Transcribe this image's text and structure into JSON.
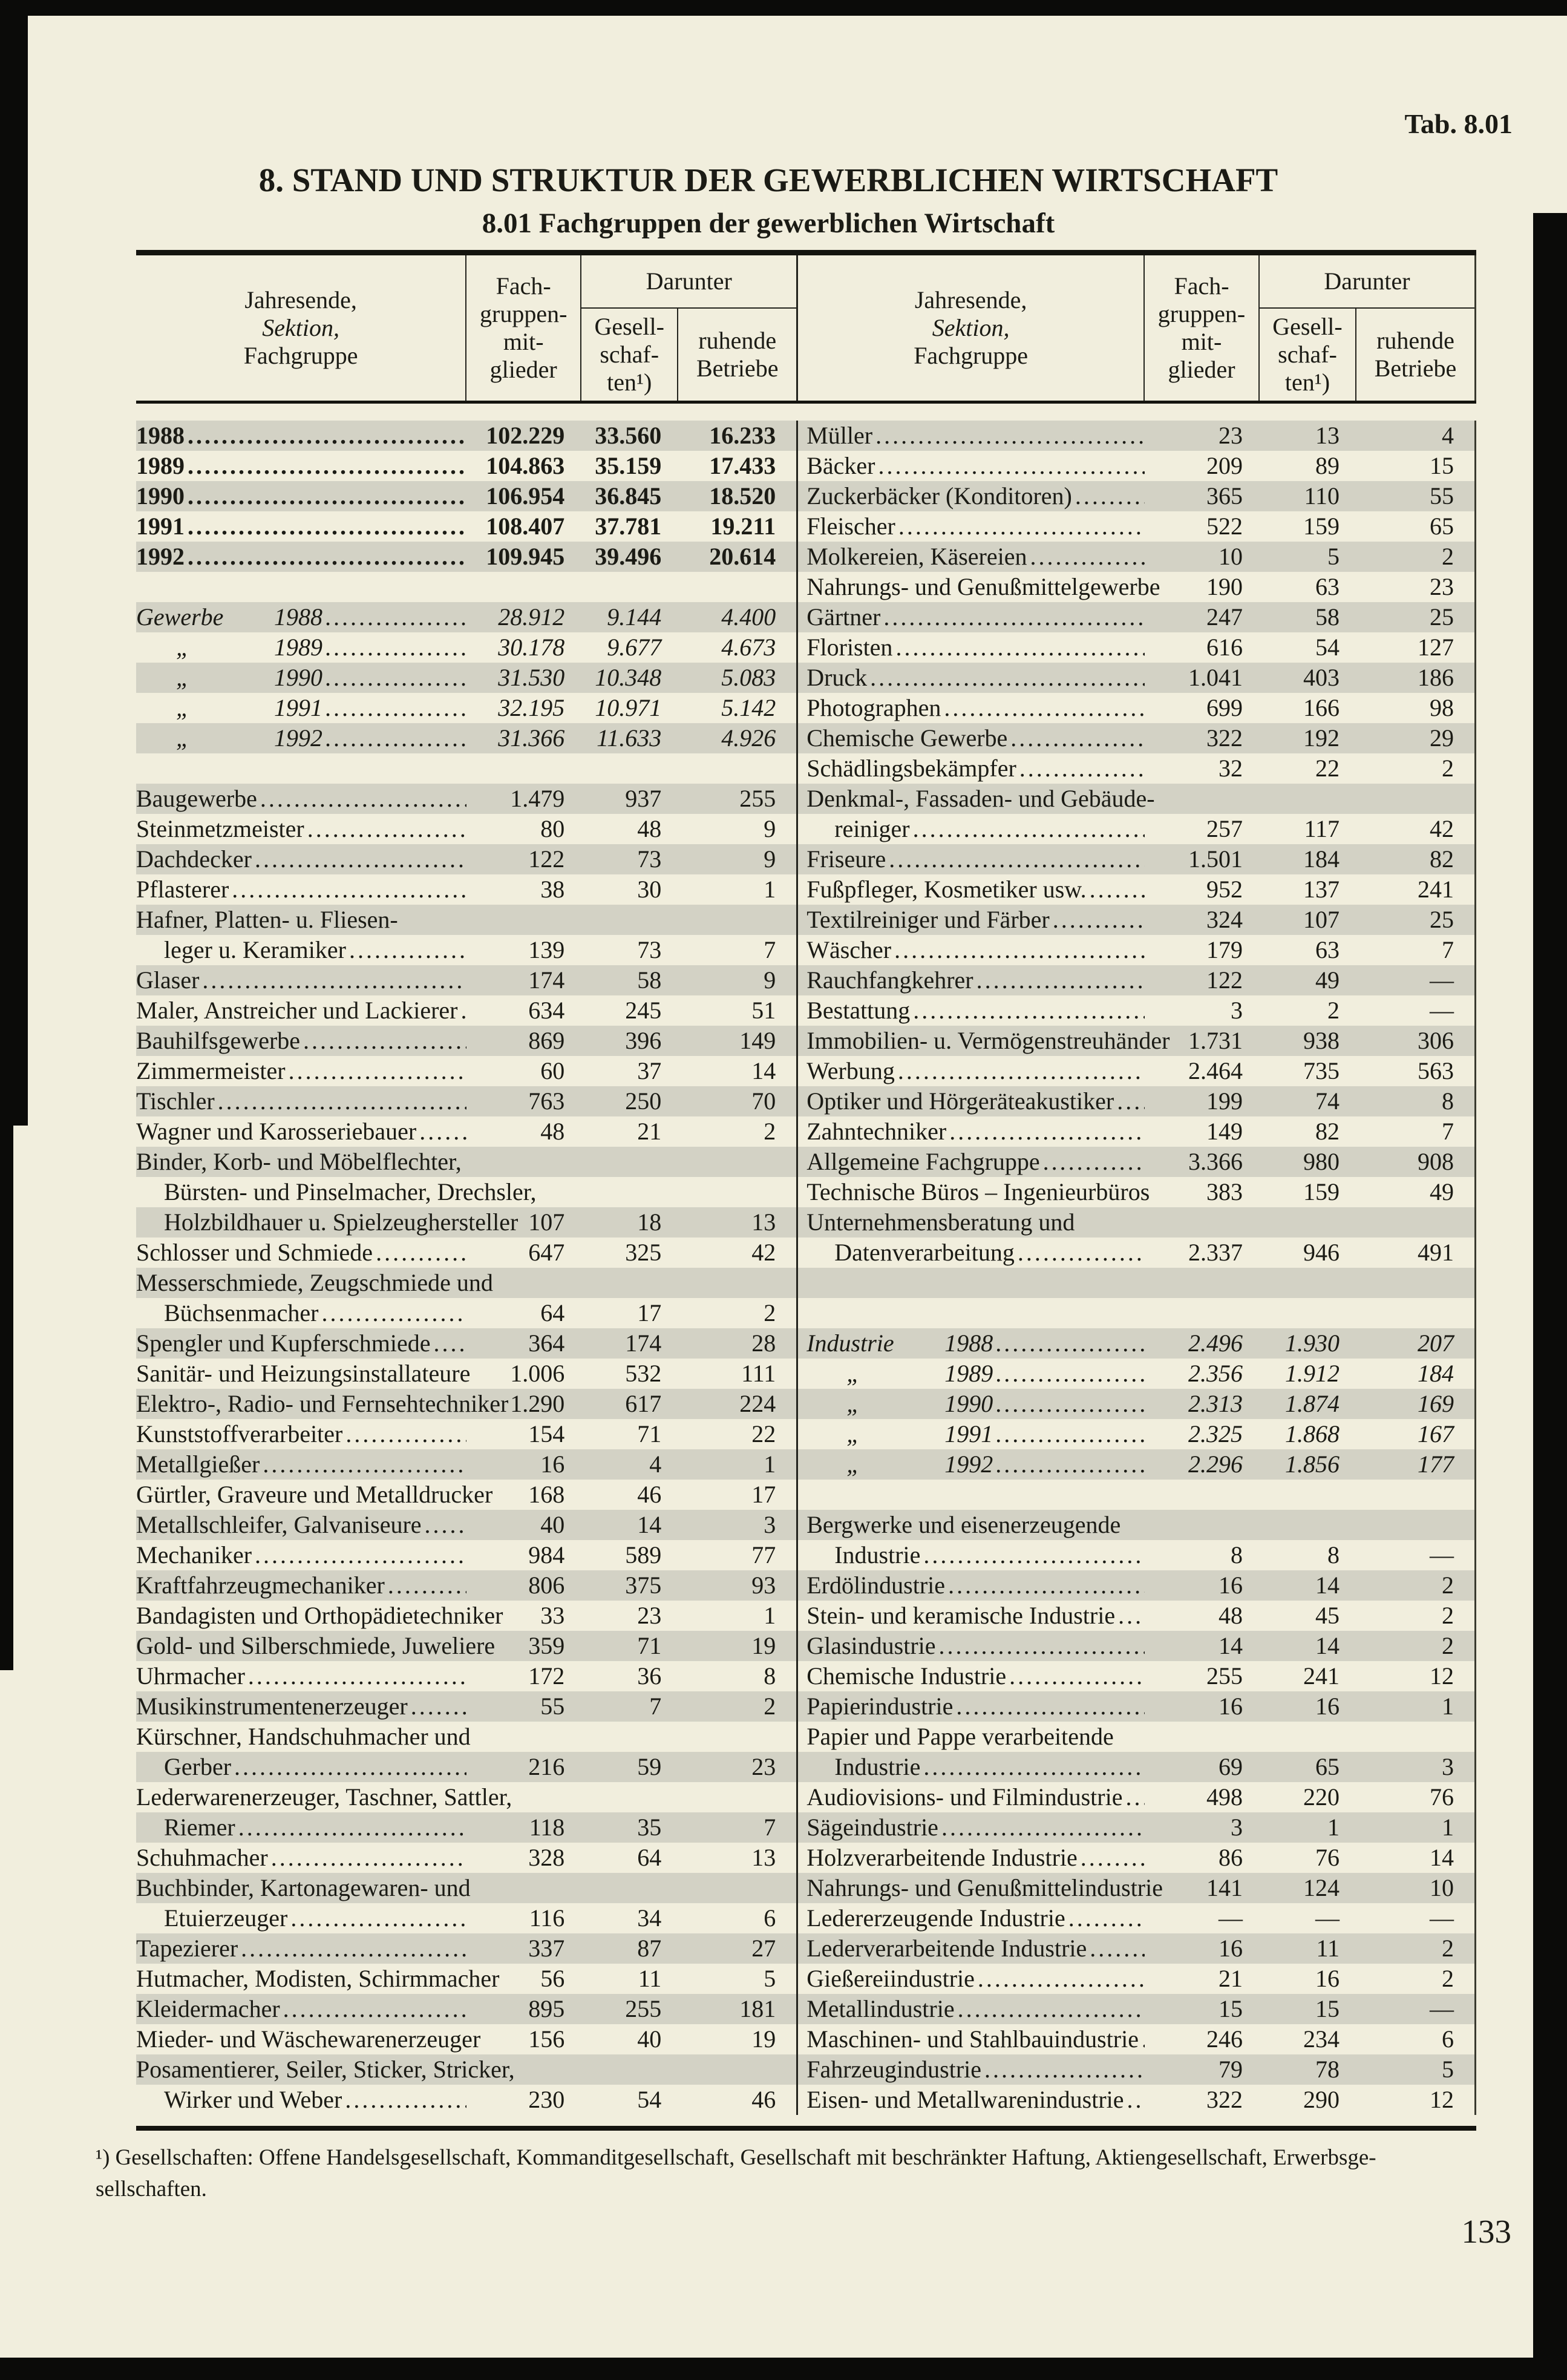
{
  "page": {
    "tab_label": "Tab. 8.01",
    "title": "8. STAND UND STRUKTUR DER GEWERBLICHEN WIRTSCHAFT",
    "subtitle": "8.01 Fachgruppen der gewerblichen Wirtschaft",
    "footnote_line1": "¹) Gesellschaften: Offene Handelsgesellschaft, Kommanditgesellschaft, Gesellschaft mit beschränkter Haftung, Aktiengesellschaft, Erwerbsge-",
    "footnote_line2": "sellschaften.",
    "page_number": "133"
  },
  "colors": {
    "paper": "#f1eedd",
    "band": "#d3d2c5",
    "ink": "#1b1b15"
  },
  "header": {
    "label_line1": "Jahresende,",
    "label_line2": "Sektion,",
    "label_line3": "Fachgruppe",
    "members": "Fach-\ngruppen-\nmit-\nglieder",
    "darunter": "Darunter",
    "companies": "Gesell-\nschaf-\nten¹)",
    "dormant": "ruhende\nBetriebe"
  },
  "table": {
    "rows": [
      {
        "l": {
          "t": "1988",
          "s": "b",
          "v": [
            "102.229",
            "33.560",
            "16.233"
          ]
        },
        "r": {
          "t": "Müller",
          "v": [
            "23",
            "13",
            "4"
          ]
        }
      },
      {
        "l": {
          "t": "1989",
          "s": "b",
          "v": [
            "104.863",
            "35.159",
            "17.433"
          ]
        },
        "r": {
          "t": "Bäcker",
          "v": [
            "209",
            "89",
            "15"
          ]
        }
      },
      {
        "l": {
          "t": "1990",
          "s": "b",
          "v": [
            "106.954",
            "36.845",
            "18.520"
          ]
        },
        "r": {
          "t": "Zuckerbäcker (Konditoren)",
          "v": [
            "365",
            "110",
            "55"
          ]
        }
      },
      {
        "l": {
          "t": "1991",
          "s": "b",
          "v": [
            "108.407",
            "37.781",
            "19.211"
          ]
        },
        "r": {
          "t": "Fleischer",
          "v": [
            "522",
            "159",
            "65"
          ]
        }
      },
      {
        "l": {
          "t": "1992",
          "s": "b",
          "v": [
            "109.945",
            "39.496",
            "20.614"
          ]
        },
        "r": {
          "t": "Molkereien, Käsereien",
          "v": [
            "10",
            "5",
            "2"
          ]
        }
      },
      {
        "l": null,
        "r": {
          "t": "Nahrungs- und Genußmittelgewerbe",
          "v": [
            "190",
            "63",
            "23"
          ]
        }
      },
      {
        "l": {
          "t": "Gewerbe\t1988",
          "s": "i",
          "v": [
            "28.912",
            "9.144",
            "4.400"
          ]
        },
        "r": {
          "t": "Gärtner",
          "v": [
            "247",
            "58",
            "25"
          ]
        }
      },
      {
        "l": {
          "t": "„\t1989",
          "s": "i",
          "v": [
            "30.178",
            "9.677",
            "4.673"
          ]
        },
        "r": {
          "t": "Floristen",
          "v": [
            "616",
            "54",
            "127"
          ]
        }
      },
      {
        "l": {
          "t": "„\t1990",
          "s": "i",
          "v": [
            "31.530",
            "10.348",
            "5.083"
          ]
        },
        "r": {
          "t": "Druck",
          "v": [
            "1.041",
            "403",
            "186"
          ]
        }
      },
      {
        "l": {
          "t": "„\t1991",
          "s": "i",
          "v": [
            "32.195",
            "10.971",
            "5.142"
          ]
        },
        "r": {
          "t": "Photographen",
          "v": [
            "699",
            "166",
            "98"
          ]
        }
      },
      {
        "l": {
          "t": "„\t1992",
          "s": "i",
          "v": [
            "31.366",
            "11.633",
            "4.926"
          ]
        },
        "r": {
          "t": "Chemische Gewerbe",
          "v": [
            "322",
            "192",
            "29"
          ]
        }
      },
      {
        "l": null,
        "r": {
          "t": "Schädlingsbekämpfer",
          "v": [
            "32",
            "22",
            "2"
          ]
        }
      },
      {
        "l": {
          "t": "Baugewerbe",
          "v": [
            "1.479",
            "937",
            "255"
          ]
        },
        "r": {
          "t": "Denkmal-, Fassaden- und Gebäude-"
        }
      },
      {
        "l": {
          "t": "Steinmetzmeister",
          "v": [
            "80",
            "48",
            "9"
          ]
        },
        "r": {
          "t": "reiniger",
          "ind": true,
          "v": [
            "257",
            "117",
            "42"
          ]
        }
      },
      {
        "l": {
          "t": "Dachdecker",
          "v": [
            "122",
            "73",
            "9"
          ]
        },
        "r": {
          "t": "Friseure",
          "v": [
            "1.501",
            "184",
            "82"
          ]
        }
      },
      {
        "l": {
          "t": "Pflasterer",
          "v": [
            "38",
            "30",
            "1"
          ]
        },
        "r": {
          "t": "Fußpfleger, Kosmetiker usw.",
          "v": [
            "952",
            "137",
            "241"
          ]
        }
      },
      {
        "l": {
          "t": "Hafner, Platten- u. Fliesen-"
        },
        "r": {
          "t": "Textilreiniger und Färber",
          "v": [
            "324",
            "107",
            "25"
          ]
        }
      },
      {
        "l": {
          "t": "leger u. Keramiker",
          "ind": true,
          "v": [
            "139",
            "73",
            "7"
          ]
        },
        "r": {
          "t": "Wäscher",
          "v": [
            "179",
            "63",
            "7"
          ]
        }
      },
      {
        "l": {
          "t": "Glaser",
          "v": [
            "174",
            "58",
            "9"
          ]
        },
        "r": {
          "t": "Rauchfangkehrer",
          "v": [
            "122",
            "49",
            "—"
          ]
        }
      },
      {
        "l": {
          "t": "Maler, Anstreicher und Lackierer",
          "v": [
            "634",
            "245",
            "51"
          ]
        },
        "r": {
          "t": "Bestattung",
          "v": [
            "3",
            "2",
            "—"
          ]
        }
      },
      {
        "l": {
          "t": "Bauhilfsgewerbe",
          "v": [
            "869",
            "396",
            "149"
          ]
        },
        "r": {
          "t": "Immobilien- u. Vermögenstreuhänder",
          "v": [
            "1.731",
            "938",
            "306"
          ]
        }
      },
      {
        "l": {
          "t": "Zimmermeister",
          "v": [
            "60",
            "37",
            "14"
          ]
        },
        "r": {
          "t": "Werbung",
          "v": [
            "2.464",
            "735",
            "563"
          ]
        }
      },
      {
        "l": {
          "t": "Tischler",
          "v": [
            "763",
            "250",
            "70"
          ]
        },
        "r": {
          "t": "Optiker und Hörgeräteakustiker",
          "v": [
            "199",
            "74",
            "8"
          ]
        }
      },
      {
        "l": {
          "t": "Wagner und Karosseriebauer",
          "v": [
            "48",
            "21",
            "2"
          ]
        },
        "r": {
          "t": "Zahntechniker",
          "v": [
            "149",
            "82",
            "7"
          ]
        }
      },
      {
        "l": {
          "t": "Binder, Korb- und Möbelflechter,"
        },
        "r": {
          "t": "Allgemeine Fachgruppe",
          "v": [
            "3.366",
            "980",
            "908"
          ]
        }
      },
      {
        "l": {
          "t": "Bürsten- und Pinselmacher, Drechsler,",
          "ind": true
        },
        "r": {
          "t": "Technische Büros – Ingenieurbüros",
          "v": [
            "383",
            "159",
            "49"
          ]
        }
      },
      {
        "l": {
          "t": "Holzbildhauer u. Spielzeughersteller",
          "ind": true,
          "v": [
            "107",
            "18",
            "13"
          ]
        },
        "r": {
          "t": "Unternehmensberatung und"
        }
      },
      {
        "l": {
          "t": "Schlosser und Schmiede",
          "v": [
            "647",
            "325",
            "42"
          ]
        },
        "r": {
          "t": "Datenverarbeitung",
          "ind": true,
          "v": [
            "2.337",
            "946",
            "491"
          ]
        }
      },
      {
        "l": {
          "t": "Messerschmiede, Zeugschmiede und"
        },
        "r": null
      },
      {
        "l": {
          "t": "Büchsenmacher",
          "ind": true,
          "v": [
            "64",
            "17",
            "2"
          ]
        },
        "r": null
      },
      {
        "l": {
          "t": "Spengler und Kupferschmiede",
          "v": [
            "364",
            "174",
            "28"
          ]
        },
        "r": {
          "t": "Industrie\t1988",
          "s": "i",
          "v": [
            "2.496",
            "1.930",
            "207"
          ]
        }
      },
      {
        "l": {
          "t": "Sanitär- und Heizungsinstallateure",
          "v": [
            "1.006",
            "532",
            "111"
          ]
        },
        "r": {
          "t": "„\t1989",
          "s": "i",
          "v": [
            "2.356",
            "1.912",
            "184"
          ]
        }
      },
      {
        "l": {
          "t": "Elektro-, Radio- und Fernsehtechniker",
          "v": [
            "1.290",
            "617",
            "224"
          ]
        },
        "r": {
          "t": "„\t1990",
          "s": "i",
          "v": [
            "2.313",
            "1.874",
            "169"
          ]
        }
      },
      {
        "l": {
          "t": "Kunststoffverarbeiter",
          "v": [
            "154",
            "71",
            "22"
          ]
        },
        "r": {
          "t": "„\t1991",
          "s": "i",
          "v": [
            "2.325",
            "1.868",
            "167"
          ]
        }
      },
      {
        "l": {
          "t": "Metallgießer",
          "v": [
            "16",
            "4",
            "1"
          ]
        },
        "r": {
          "t": "„\t1992",
          "s": "i",
          "v": [
            "2.296",
            "1.856",
            "177"
          ]
        }
      },
      {
        "l": {
          "t": "Gürtler, Graveure und Metalldrucker",
          "v": [
            "168",
            "46",
            "17"
          ]
        },
        "r": null
      },
      {
        "l": {
          "t": "Metallschleifer, Galvaniseure",
          "v": [
            "40",
            "14",
            "3"
          ]
        },
        "r": {
          "t": "Bergwerke und eisenerzeugende"
        }
      },
      {
        "l": {
          "t": "Mechaniker",
          "v": [
            "984",
            "589",
            "77"
          ]
        },
        "r": {
          "t": "Industrie",
          "ind": true,
          "v": [
            "8",
            "8",
            "—"
          ]
        }
      },
      {
        "l": {
          "t": "Kraftfahrzeugmechaniker",
          "v": [
            "806",
            "375",
            "93"
          ]
        },
        "r": {
          "t": "Erdölindustrie",
          "v": [
            "16",
            "14",
            "2"
          ]
        }
      },
      {
        "l": {
          "t": "Bandagisten und Orthopädietechniker",
          "v": [
            "33",
            "23",
            "1"
          ]
        },
        "r": {
          "t": "Stein- und keramische Industrie",
          "v": [
            "48",
            "45",
            "2"
          ]
        }
      },
      {
        "l": {
          "t": "Gold- und Silberschmiede, Juweliere",
          "v": [
            "359",
            "71",
            "19"
          ]
        },
        "r": {
          "t": "Glasindustrie",
          "v": [
            "14",
            "14",
            "2"
          ]
        }
      },
      {
        "l": {
          "t": "Uhrmacher",
          "v": [
            "172",
            "36",
            "8"
          ]
        },
        "r": {
          "t": "Chemische Industrie",
          "v": [
            "255",
            "241",
            "12"
          ]
        }
      },
      {
        "l": {
          "t": "Musikinstrumentenerzeuger",
          "v": [
            "55",
            "7",
            "2"
          ]
        },
        "r": {
          "t": "Papierindustrie",
          "v": [
            "16",
            "16",
            "1"
          ]
        }
      },
      {
        "l": {
          "t": "Kürschner, Handschuhmacher und"
        },
        "r": {
          "t": "Papier und Pappe verarbeitende"
        }
      },
      {
        "l": {
          "t": "Gerber",
          "ind": true,
          "v": [
            "216",
            "59",
            "23"
          ]
        },
        "r": {
          "t": "Industrie",
          "ind": true,
          "v": [
            "69",
            "65",
            "3"
          ]
        }
      },
      {
        "l": {
          "t": "Lederwarenerzeuger, Taschner, Sattler,"
        },
        "r": {
          "t": "Audiovisions- und Filmindustrie",
          "v": [
            "498",
            "220",
            "76"
          ]
        }
      },
      {
        "l": {
          "t": "Riemer",
          "ind": true,
          "v": [
            "118",
            "35",
            "7"
          ]
        },
        "r": {
          "t": "Sägeindustrie",
          "v": [
            "3",
            "1",
            "1"
          ]
        }
      },
      {
        "l": {
          "t": "Schuhmacher",
          "v": [
            "328",
            "64",
            "13"
          ]
        },
        "r": {
          "t": "Holzverarbeitende Industrie",
          "v": [
            "86",
            "76",
            "14"
          ]
        }
      },
      {
        "l": {
          "t": "Buchbinder, Kartonagewaren- und"
        },
        "r": {
          "t": "Nahrungs- und Genußmittelindustrie",
          "v": [
            "141",
            "124",
            "10"
          ]
        }
      },
      {
        "l": {
          "t": "Etuierzeuger",
          "ind": true,
          "v": [
            "116",
            "34",
            "6"
          ]
        },
        "r": {
          "t": "Ledererzeugende Industrie",
          "v": [
            "—",
            "—",
            "—"
          ]
        }
      },
      {
        "l": {
          "t": "Tapezierer",
          "v": [
            "337",
            "87",
            "27"
          ]
        },
        "r": {
          "t": "Lederverarbeitende Industrie",
          "v": [
            "16",
            "11",
            "2"
          ]
        }
      },
      {
        "l": {
          "t": "Hutmacher, Modisten, Schirmmacher",
          "v": [
            "56",
            "11",
            "5"
          ]
        },
        "r": {
          "t": "Gießereiindustrie",
          "v": [
            "21",
            "16",
            "2"
          ]
        }
      },
      {
        "l": {
          "t": "Kleidermacher",
          "v": [
            "895",
            "255",
            "181"
          ]
        },
        "r": {
          "t": "Metallindustrie",
          "v": [
            "15",
            "15",
            "—"
          ]
        }
      },
      {
        "l": {
          "t": "Mieder- und Wäschewarenerzeuger",
          "v": [
            "156",
            "40",
            "19"
          ]
        },
        "r": {
          "t": "Maschinen- und Stahlbauindustrie",
          "v": [
            "246",
            "234",
            "6"
          ]
        }
      },
      {
        "l": {
          "t": "Posamentierer, Seiler, Sticker, Stricker,"
        },
        "r": {
          "t": "Fahrzeugindustrie",
          "v": [
            "79",
            "78",
            "5"
          ]
        }
      },
      {
        "l": {
          "t": "Wirker und Weber",
          "ind": true,
          "v": [
            "230",
            "54",
            "46"
          ]
        },
        "r": {
          "t": "Eisen- und Metallwarenindustrie",
          "v": [
            "322",
            "290",
            "12"
          ]
        }
      }
    ]
  }
}
